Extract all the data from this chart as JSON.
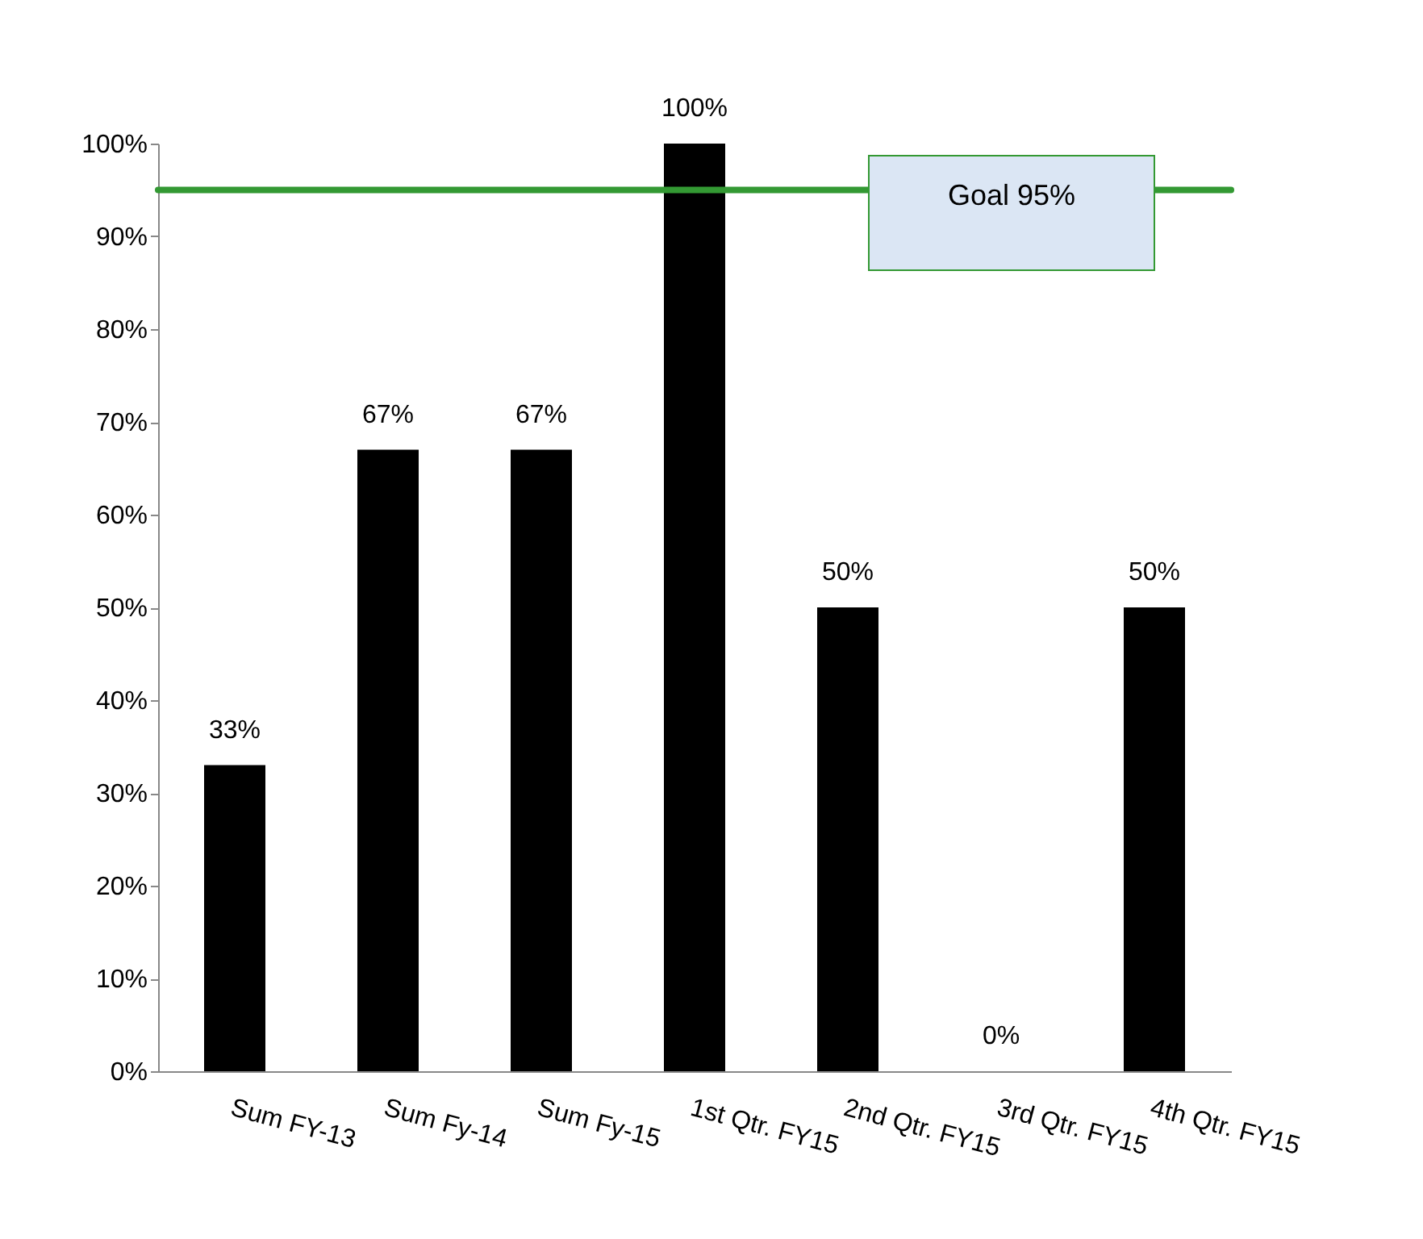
{
  "chart_data": {
    "type": "bar",
    "categories": [
      "Sum FY-13",
      "Sum Fy-14",
      "Sum Fy-15",
      "1st Qtr. FY15",
      "2nd Qtr. FY15",
      "3rd Qtr. FY15",
      "4th Qtr. FY15"
    ],
    "values": [
      33,
      67,
      67,
      100,
      50,
      0,
      50
    ],
    "value_labels": [
      "33%",
      "67%",
      "67%",
      "100%",
      "50%",
      "0%",
      "50%"
    ],
    "color": "#000000",
    "ylim": [
      0,
      100
    ],
    "yticks": [
      {
        "value": 0,
        "label": "0%"
      },
      {
        "value": 10,
        "label": "10%"
      },
      {
        "value": 20,
        "label": "20%"
      },
      {
        "value": 30,
        "label": "30%"
      },
      {
        "value": 40,
        "label": "40%"
      },
      {
        "value": 50,
        "label": "50%"
      },
      {
        "value": 60,
        "label": "60%"
      },
      {
        "value": 70,
        "label": "70%"
      },
      {
        "value": 80,
        "label": "80%"
      },
      {
        "value": 90,
        "label": "90%"
      },
      {
        "value": 100,
        "label": "100%"
      }
    ],
    "ref_lines": [
      {
        "axis": "y",
        "value": 95,
        "label": "Goal 95%",
        "color": "#339933"
      }
    ]
  }
}
